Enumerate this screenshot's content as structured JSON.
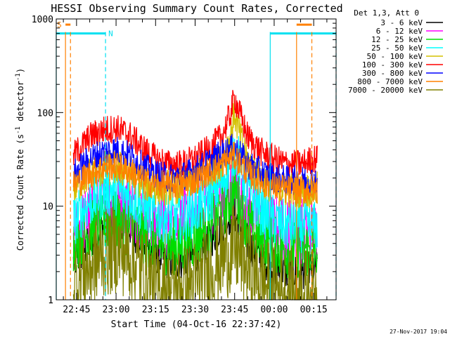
{
  "chart_data": {
    "type": "line",
    "title": "HESSI Observing Summary Count Rates, Corrected",
    "xlabel": "Start Time (04-Oct-16 22:37:42)",
    "ylabel": "Corrected Count Rate (s",
    "ylabel_sup": "-1",
    "ylabel_tail": " detector",
    "ylabel_tail_sup": "-1",
    "ylabel_close": ")",
    "y_scale": "log",
    "ylim": [
      1,
      1000
    ],
    "xlim_minutes": [
      -7.7,
      98.5
    ],
    "x_ticks": [
      {
        "label": "22:45",
        "minutes": 0
      },
      {
        "label": "23:00",
        "minutes": 15
      },
      {
        "label": "23:15",
        "minutes": 30
      },
      {
        "label": "23:30",
        "minutes": 45
      },
      {
        "label": "23:45",
        "minutes": 60
      },
      {
        "label": "00:00",
        "minutes": 75
      },
      {
        "label": "00:15",
        "minutes": 90
      }
    ],
    "y_ticks": [
      {
        "label": "1",
        "value": 1
      },
      {
        "label": "10",
        "value": 10
      },
      {
        "label": "100",
        "value": 100
      },
      {
        "label": "1000",
        "value": 1000
      }
    ],
    "legend_title": "Det 1,3, Att 0",
    "legend_position": "right",
    "x_unit_note": "minutes after 22:45 UT",
    "series": [
      {
        "name": "3 - 6 keV",
        "color": "#000000",
        "x": [
          -1,
          5,
          10,
          15,
          20,
          25,
          30,
          35,
          40,
          45,
          50,
          55,
          58,
          60,
          62,
          65,
          70,
          75,
          80,
          85,
          90
        ],
        "y": [
          2.5,
          4,
          6,
          8,
          6,
          4,
          3,
          2.6,
          2.6,
          3,
          4,
          6,
          7.5,
          8,
          6.5,
          4,
          2.8,
          2.2,
          2,
          2,
          2.2
        ]
      },
      {
        "name": "6 - 12 keV",
        "color": "#ff00ff",
        "x": [
          -1,
          5,
          10,
          15,
          20,
          25,
          30,
          35,
          40,
          45,
          50,
          55,
          58,
          60,
          62,
          65,
          70,
          75,
          80,
          85,
          90
        ],
        "y": [
          5,
          8,
          10,
          12,
          10,
          7.5,
          6.5,
          6,
          6.5,
          8,
          10,
          12,
          14,
          15,
          12,
          9,
          7,
          6,
          5.5,
          5.5,
          5.5
        ]
      },
      {
        "name": "12 - 25 keV",
        "color": "#00dd00",
        "x": [
          -1,
          5,
          10,
          15,
          20,
          25,
          30,
          35,
          40,
          45,
          50,
          55,
          58,
          60,
          62,
          65,
          70,
          75,
          80,
          85,
          90
        ],
        "y": [
          4,
          5.5,
          6.5,
          7,
          6,
          5,
          4,
          3.8,
          3.8,
          4.5,
          6,
          9,
          12,
          15,
          10,
          6.5,
          4.5,
          3.8,
          3.5,
          3.5,
          3.5
        ]
      },
      {
        "name": "25 - 50 keV",
        "color": "#00ffff",
        "x": [
          -1,
          5,
          10,
          15,
          20,
          25,
          30,
          35,
          40,
          45,
          50,
          55,
          58,
          60,
          62,
          65,
          70,
          75,
          80,
          85,
          90
        ],
        "y": [
          7,
          11,
          14,
          15,
          13,
          10,
          8,
          7.5,
          7.5,
          9,
          12,
          18,
          28,
          40,
          28,
          15,
          9,
          7,
          6.2,
          6,
          6
        ]
      },
      {
        "name": "50 - 100 keV",
        "color": "#d4c000",
        "x": [
          -1,
          5,
          10,
          15,
          20,
          25,
          30,
          35,
          40,
          45,
          50,
          55,
          58,
          60,
          62,
          65,
          70,
          75,
          80,
          85,
          90
        ],
        "y": [
          16,
          22,
          25,
          26,
          23,
          18,
          16,
          16,
          17,
          20,
          24,
          30,
          50,
          100,
          55,
          30,
          20,
          16,
          15,
          15,
          15
        ]
      },
      {
        "name": "100 - 300 keV",
        "color": "#ff0000",
        "x": [
          -1,
          5,
          10,
          15,
          20,
          25,
          30,
          35,
          40,
          45,
          50,
          55,
          58,
          60,
          62,
          65,
          70,
          75,
          80,
          85,
          90
        ],
        "y": [
          35,
          55,
          65,
          68,
          58,
          42,
          32,
          28,
          28,
          32,
          40,
          55,
          90,
          145,
          95,
          55,
          38,
          32,
          28,
          28,
          32
        ]
      },
      {
        "name": "300 - 800 keV",
        "color": "#0000ff",
        "x": [
          -1,
          5,
          10,
          15,
          20,
          25,
          30,
          35,
          40,
          45,
          50,
          55,
          58,
          60,
          62,
          65,
          70,
          75,
          80,
          85,
          90
        ],
        "y": [
          22,
          32,
          38,
          40,
          35,
          27,
          22,
          20,
          21,
          24,
          29,
          36,
          40,
          42,
          36,
          28,
          23,
          20,
          19,
          19,
          19
        ]
      },
      {
        "name": "800 - 7000 keV",
        "color": "#ff8000",
        "x": [
          -1,
          5,
          10,
          15,
          20,
          25,
          30,
          35,
          40,
          45,
          50,
          55,
          58,
          60,
          62,
          65,
          70,
          75,
          80,
          85,
          90
        ],
        "y": [
          17,
          22,
          26,
          27,
          24,
          19,
          17,
          16.5,
          17,
          19,
          23,
          28,
          32,
          34,
          29,
          23,
          18,
          16,
          15,
          15,
          15
        ]
      },
      {
        "name": "7000 - 20000 keV",
        "color": "#808000",
        "x": [
          -1,
          5,
          10,
          15,
          20,
          25,
          30,
          35,
          40,
          45,
          50,
          55,
          58,
          60,
          62,
          65,
          70,
          75,
          80,
          85,
          90
        ],
        "y": [
          1.5,
          2.2,
          3,
          3.5,
          3,
          2,
          1.4,
          1.3,
          1.3,
          1.5,
          2,
          2.8,
          3.2,
          3.5,
          3,
          2.2,
          1.6,
          1.3,
          1.2,
          1.2,
          1.2
        ]
      }
    ],
    "time_intervals": {
      "data_start_minutes": -7.7,
      "data_end_minutes": 98.5,
      "night": [
        {
          "label": "N",
          "start_minutes": -7.7,
          "end_minutes": 11,
          "color": "#00e0f0"
        },
        {
          "label": "",
          "start_minutes": 73.5,
          "end_minutes": 98.5,
          "color": "#00e0f0"
        }
      ],
      "saa": [
        {
          "label": "S",
          "start_minutes": -4.2,
          "end_minutes": -2.3,
          "color": "#ff8000"
        },
        {
          "label": "",
          "start_minutes": 83.5,
          "end_minutes": 89.3,
          "color": "#ff8000"
        }
      ]
    }
  },
  "footer": {
    "timestamp": "27-Nov-2017 19:04"
  }
}
